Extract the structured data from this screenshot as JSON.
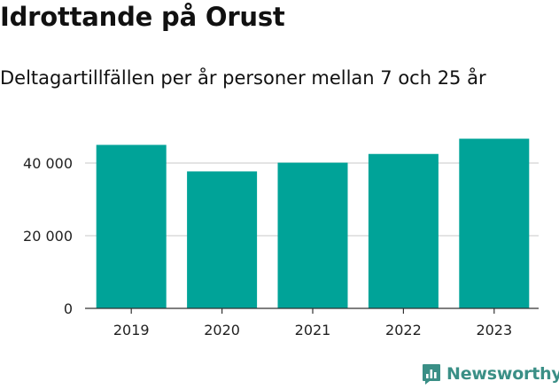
{
  "header": {
    "title": "Idrottande på Orust",
    "subtitle": "Deltagartillfällen per år personer mellan 7 och 25 år"
  },
  "chart_data": {
    "type": "bar",
    "categories": [
      "2019",
      "2020",
      "2021",
      "2022",
      "2023"
    ],
    "values": [
      45000,
      37700,
      40100,
      42500,
      46700
    ],
    "yticks": [
      0,
      20000,
      40000
    ],
    "ytick_labels": [
      "0",
      "20 000",
      "40 000"
    ],
    "ylim": [
      0,
      50000
    ],
    "grid": true,
    "bar_color": "#00a398",
    "xlabel": "",
    "ylabel": ""
  },
  "brand": {
    "name": "Newsworthy",
    "color": "#3a8f86",
    "icon": "newsworthy-logo-icon"
  }
}
